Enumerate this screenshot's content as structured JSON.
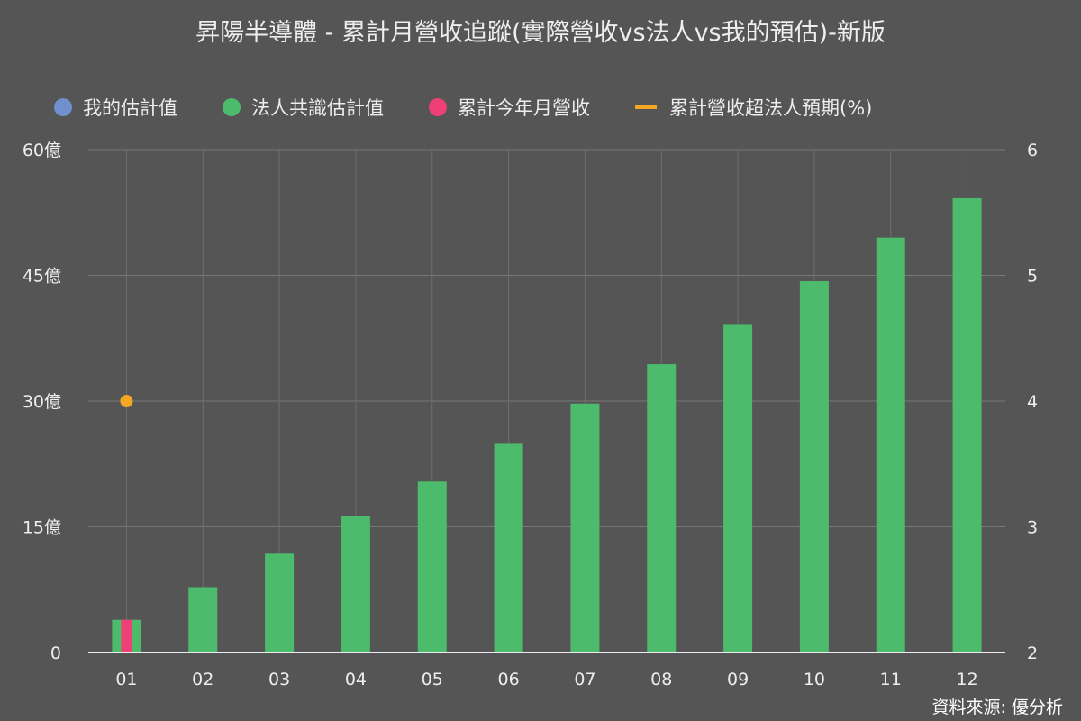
{
  "chart_data": {
    "type": "bar",
    "title": "昇陽半導體 - 累計月營收追蹤(實際營收vs法人vs我的預估)-新版",
    "categories": [
      "01",
      "02",
      "03",
      "04",
      "05",
      "06",
      "07",
      "08",
      "09",
      "10",
      "11",
      "12"
    ],
    "y_left": {
      "ylim": [
        0,
        60
      ],
      "ticks": [
        0,
        15,
        30,
        45,
        60
      ],
      "tick_labels": [
        "0",
        "15億",
        "30億",
        "45億",
        "60億"
      ],
      "unit": "億"
    },
    "y_right": {
      "ylim": [
        2,
        6
      ],
      "ticks": [
        2,
        3,
        4,
        5,
        6
      ],
      "tick_labels": [
        "2",
        "3",
        "4",
        "5",
        "6"
      ]
    },
    "grid": true,
    "legend_placement": "top",
    "series": [
      {
        "name": "我的估計值",
        "type": "scatter",
        "color": "#6f8fcf",
        "axis": "left",
        "values": [
          null,
          null,
          null,
          null,
          null,
          null,
          null,
          null,
          null,
          null,
          null,
          null
        ]
      },
      {
        "name": "法人共識估計值",
        "type": "bar",
        "color": "#4cbb6c",
        "axis": "left",
        "values": [
          3.9,
          7.8,
          11.8,
          16.3,
          20.4,
          24.9,
          29.7,
          34.4,
          39.1,
          44.3,
          49.5,
          54.2
        ]
      },
      {
        "name": "累計今年月營收",
        "type": "bar",
        "color": "#ef3f77",
        "axis": "left",
        "values": [
          3.9,
          null,
          null,
          null,
          null,
          null,
          null,
          null,
          null,
          null,
          null,
          null
        ]
      },
      {
        "name": "累計營收超法人預期(%)",
        "type": "line",
        "color": "#f5a623",
        "axis": "right",
        "values": [
          4,
          null,
          null,
          null,
          null,
          null,
          null,
          null,
          null,
          null,
          null,
          null
        ]
      }
    ],
    "source": "資料來源: 優分析"
  }
}
